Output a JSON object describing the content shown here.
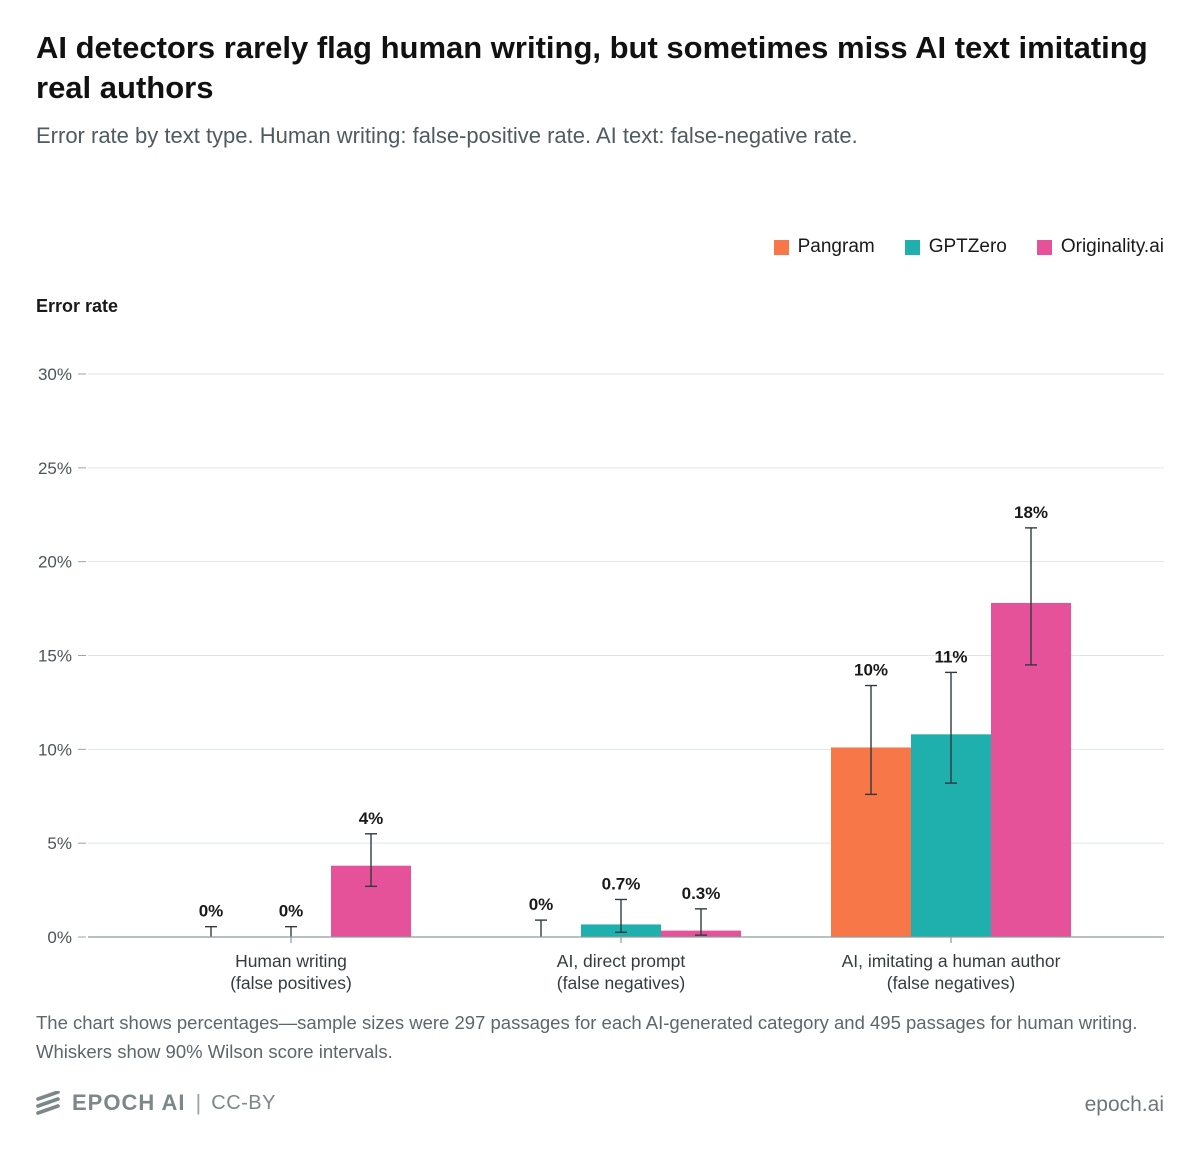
{
  "title": "AI detectors rarely flag human writing, but sometimes miss AI text imitating real authors",
  "subtitle": "Error rate by text type. Human writing: false-positive rate. AI text: false-negative rate.",
  "note": "The chart shows percentages—sample sizes were 297 passages for each AI-generated category and 495 passages for human writing. Whiskers show 90% Wilson score intervals.",
  "footer": {
    "brand": "EPOCH AI",
    "separator": "|",
    "license": "CC-BY",
    "site": "epoch.ai",
    "logo_icon": "epoch-logo-icon"
  },
  "chart_data": {
    "type": "bar",
    "ylabel": "Error rate",
    "xlabel": "",
    "ylim": [
      0,
      30
    ],
    "yticks": [
      0,
      5,
      10,
      15,
      20,
      25,
      30
    ],
    "ytick_labels": [
      "0%",
      "5%",
      "10%",
      "15%",
      "20%",
      "25%",
      "30%"
    ],
    "grid": true,
    "legend_position": "top-right",
    "categories": [
      {
        "line1": "Human writing",
        "line2": "(false positives)"
      },
      {
        "line1": "AI, direct prompt",
        "line2": "(false negatives)"
      },
      {
        "line1": "AI, imitating a human author",
        "line2": "(false negatives)"
      }
    ],
    "series": [
      {
        "name": "Pangram",
        "color": "#f77748",
        "values": [
          0,
          0,
          10.1
        ],
        "error_low": [
          0,
          0,
          7.6
        ],
        "error_high": [
          0.55,
          0.9,
          13.4
        ],
        "labels": [
          "0%",
          "0%",
          "10%"
        ]
      },
      {
        "name": "GPTZero",
        "color": "#1fafac",
        "values": [
          0,
          0.67,
          10.8
        ],
        "error_low": [
          0,
          0.25,
          8.2
        ],
        "error_high": [
          0.55,
          2.0,
          14.1
        ],
        "labels": [
          "0%",
          "0.7%",
          "11%"
        ]
      },
      {
        "name": "Originality.ai",
        "color": "#e5529a",
        "values": [
          3.8,
          0.34,
          17.8
        ],
        "error_low": [
          2.7,
          0.1,
          14.5
        ],
        "error_high": [
          5.5,
          1.5,
          21.8
        ],
        "labels": [
          "4%",
          "0.3%",
          "18%"
        ]
      }
    ]
  }
}
